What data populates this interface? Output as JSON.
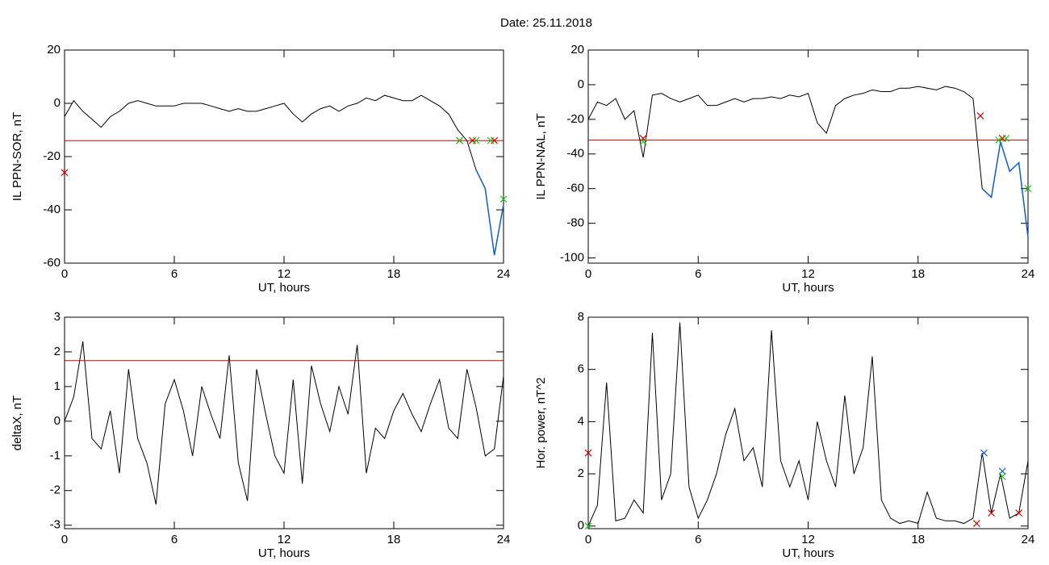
{
  "title": "Date:  25.11.2018",
  "chart_data": [
    {
      "type": "line",
      "xlabel": "UT, hours",
      "ylabel": "IL PPN-SOR, nT",
      "color": "#000000",
      "x": [
        0,
        0.5,
        1,
        1.5,
        2,
        2.5,
        3,
        3.5,
        4,
        4.5,
        5,
        5.5,
        6,
        6.5,
        7,
        7.5,
        8,
        8.5,
        9,
        9.5,
        10,
        10.5,
        11,
        11.5,
        12,
        12.5,
        13,
        13.5,
        14,
        14.5,
        15,
        15.5,
        16,
        16.5,
        17,
        17.5,
        18,
        18.5,
        19,
        19.5,
        20,
        20.5,
        21,
        21.5,
        22,
        22.5,
        23,
        23.5,
        24
      ],
      "values": [
        -5,
        1,
        -3,
        -6,
        -9,
        -5,
        -3,
        0,
        1,
        0,
        -1,
        -1,
        -1,
        0,
        0,
        0,
        -1,
        -2,
        -3,
        -2,
        -3,
        -3,
        -2,
        -1,
        0,
        -4,
        -7,
        -4,
        -2,
        -1,
        -3,
        -1,
        0,
        2,
        1,
        3,
        2,
        1,
        1,
        3,
        1,
        -1,
        -4,
        -10,
        -14,
        -25,
        -32,
        -57,
        -38
      ],
      "xlim": [
        0,
        24
      ],
      "xticks": [
        0,
        6,
        12,
        18,
        24
      ],
      "ylim": [
        -60,
        20
      ],
      "yticks": [
        -60,
        -40,
        -20,
        0,
        20
      ],
      "threshold": -14,
      "threshold_color": "#d00000",
      "highlight_below": true,
      "highlight_color": "#1060d0",
      "markers": [
        {
          "color": "#d00000",
          "x": [
            0,
            21.6,
            22.3,
            23.5
          ],
          "y": [
            -26,
            -14,
            -14,
            -14
          ]
        },
        {
          "color": "#20c020",
          "x": [
            21.6,
            22.5,
            23.3,
            24
          ],
          "y": [
            -14,
            -14,
            -14,
            -36
          ]
        }
      ]
    },
    {
      "type": "line",
      "xlabel": "UT, hours",
      "ylabel": "IL PPN-NAL, nT",
      "color": "#000000",
      "x": [
        0,
        0.5,
        1,
        1.5,
        2,
        2.5,
        3,
        3.5,
        4,
        4.5,
        5,
        5.5,
        6,
        6.5,
        7,
        7.5,
        8,
        8.5,
        9,
        9.5,
        10,
        10.5,
        11,
        11.5,
        12,
        12.5,
        13,
        13.5,
        14,
        14.5,
        15,
        15.5,
        16,
        16.5,
        17,
        17.5,
        18,
        18.5,
        19,
        19.5,
        20,
        20.5,
        21,
        21.5,
        22,
        22.5,
        23,
        23.5,
        24
      ],
      "values": [
        -20,
        -10,
        -12,
        -8,
        -20,
        -15,
        -42,
        -6,
        -5,
        -8,
        -10,
        -8,
        -6,
        -12,
        -12,
        -10,
        -8,
        -10,
        -8,
        -8,
        -7,
        -8,
        -6,
        -7,
        -5,
        -22,
        -28,
        -12,
        -8,
        -6,
        -5,
        -3,
        -4,
        -4,
        -2,
        -2,
        -1,
        -2,
        -3,
        -1,
        -2,
        -4,
        -8,
        -60,
        -65,
        -33,
        -50,
        -45,
        -88
      ],
      "xlim": [
        0,
        24
      ],
      "xticks": [
        0,
        6,
        12,
        18,
        24
      ],
      "ylim": [
        -103,
        20
      ],
      "yticks": [
        -100,
        -80,
        -60,
        -40,
        -20,
        0,
        20
      ],
      "threshold": -32,
      "threshold_color": "#d00000",
      "highlight_below": true,
      "highlight_color": "#1060d0",
      "markers": [
        {
          "color": "#d00000",
          "x": [
            21.4,
            3,
            22.6
          ],
          "y": [
            -18,
            -31,
            -31
          ]
        },
        {
          "color": "#20c020",
          "x": [
            3,
            22.4,
            22.8,
            24
          ],
          "y": [
            -33,
            -32,
            -31,
            -60
          ]
        }
      ]
    },
    {
      "type": "line",
      "xlabel": "UT, hours",
      "ylabel": "deltaX, nT",
      "color": "#000000",
      "x": [
        0,
        0.5,
        1,
        1.5,
        2,
        2.5,
        3,
        3.5,
        4,
        4.5,
        5,
        5.5,
        6,
        6.5,
        7,
        7.5,
        8,
        8.5,
        9,
        9.5,
        10,
        10.5,
        11,
        11.5,
        12,
        12.5,
        13,
        13.5,
        14,
        14.5,
        15,
        15.5,
        16,
        16.5,
        17,
        17.5,
        18,
        18.5,
        19,
        19.5,
        20,
        20.5,
        21,
        21.5,
        22,
        22.5,
        23,
        23.5,
        24
      ],
      "values": [
        0,
        0.7,
        2.3,
        -0.5,
        -0.8,
        0.3,
        -1.5,
        1.5,
        -0.5,
        -1.2,
        -2.4,
        0.5,
        1.2,
        0.3,
        -1.0,
        1.0,
        0.2,
        -0.5,
        1.9,
        -1.2,
        -2.3,
        1.5,
        0.2,
        -1.0,
        -1.5,
        1.2,
        -1.8,
        1.6,
        0.5,
        -0.3,
        1.0,
        0.2,
        2.2,
        -1.5,
        -0.2,
        -0.5,
        0.3,
        0.8,
        0.2,
        -0.3,
        0.5,
        1.2,
        -0.2,
        -0.5,
        1.5,
        0.4,
        -1.0,
        -0.8,
        1.3
      ],
      "xlim": [
        0,
        24
      ],
      "xticks": [
        0,
        6,
        12,
        18,
        24
      ],
      "ylim": [
        -3.1,
        3
      ],
      "yticks": [
        -3,
        -2,
        -1,
        0,
        1,
        2,
        3
      ],
      "threshold": 1.75,
      "threshold_color": "#d00000",
      "highlight_below": false
    },
    {
      "type": "line",
      "xlabel": "UT, hours",
      "ylabel": "Hor. power, nT^2",
      "color": "#000000",
      "x": [
        0,
        0.5,
        1,
        1.5,
        2,
        2.5,
        3,
        3.5,
        4,
        4.5,
        5,
        5.5,
        6,
        6.5,
        7,
        7.5,
        8,
        8.5,
        9,
        9.5,
        10,
        10.5,
        11,
        11.5,
        12,
        12.5,
        13,
        13.5,
        14,
        14.5,
        15,
        15.5,
        16,
        16.5,
        17,
        17.5,
        18,
        18.5,
        19,
        19.5,
        20,
        20.5,
        21,
        21.5,
        22,
        22.5,
        23,
        23.5,
        24
      ],
      "values": [
        0,
        0.8,
        5.5,
        0.2,
        0.3,
        1.0,
        0.5,
        7.4,
        1.0,
        2.0,
        7.8,
        1.5,
        0.3,
        1.0,
        2.0,
        3.5,
        4.5,
        2.5,
        3.0,
        1.5,
        7.5,
        2.5,
        1.5,
        2.5,
        1.0,
        4.0,
        2.5,
        1.5,
        5.0,
        2.0,
        3.0,
        6.5,
        1.0,
        0.3,
        0.1,
        0.2,
        0.1,
        1.3,
        0.3,
        0.2,
        0.2,
        0.1,
        0.3,
        2.8,
        0.5,
        2.0,
        0.3,
        0.5,
        2.5
      ],
      "xlim": [
        0,
        24
      ],
      "xticks": [
        0,
        6,
        12,
        18,
        24
      ],
      "ylim": [
        -0.1,
        8
      ],
      "yticks": [
        0,
        2,
        4,
        6,
        8
      ],
      "highlight_below": false,
      "markers": [
        {
          "color": "#1060d0",
          "x": [
            21.6,
            22.6
          ],
          "y": [
            2.8,
            2.1
          ]
        },
        {
          "color": "#20c020",
          "x": [
            22.6,
            0
          ],
          "y": [
            1.9,
            0
          ]
        },
        {
          "color": "#d00000",
          "x": [
            21.2,
            22,
            23.5,
            0
          ],
          "y": [
            0.1,
            0.5,
            0.5,
            2.8
          ]
        }
      ]
    }
  ]
}
